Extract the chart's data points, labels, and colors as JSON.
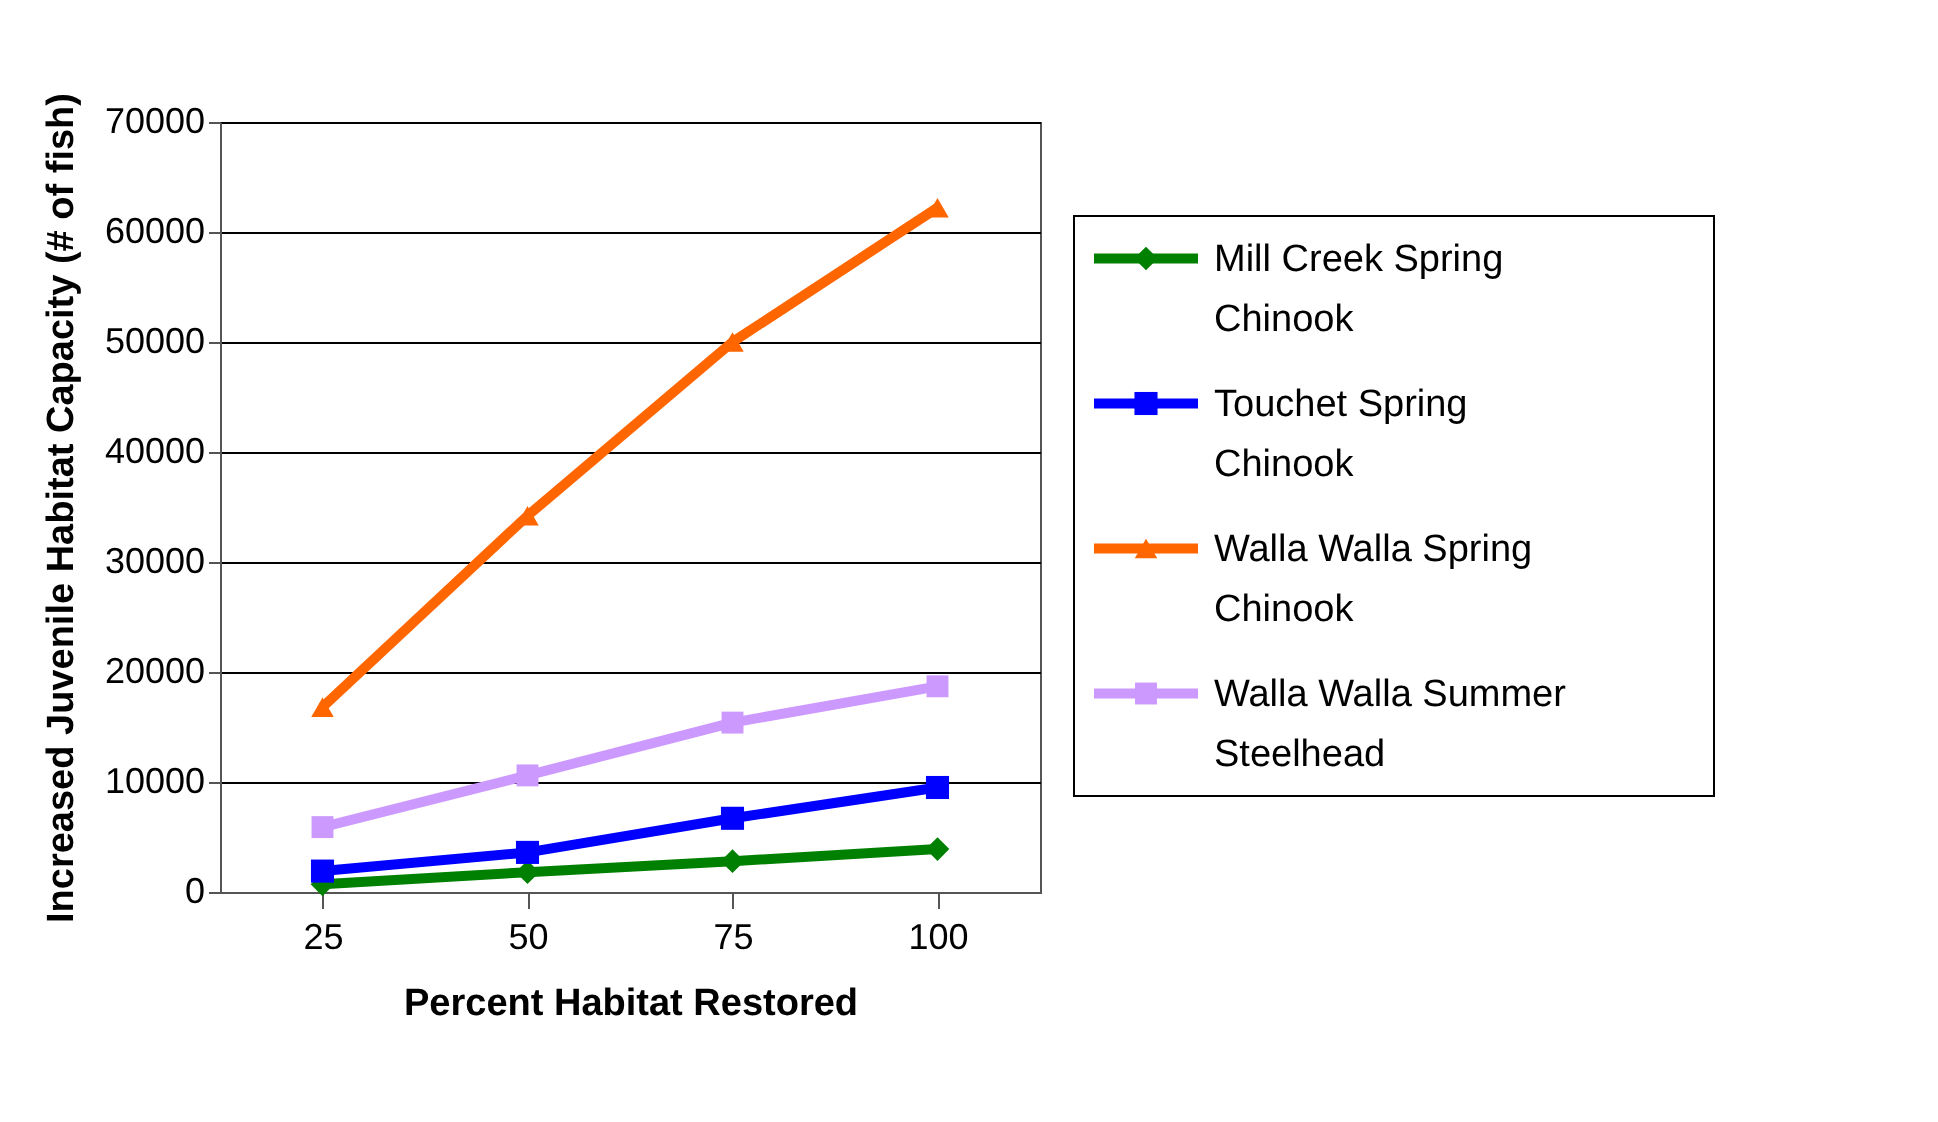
{
  "chart_data": {
    "type": "line",
    "xlabel": "Percent Habitat Restored",
    "ylabel": "Increased Juvenile Habitat Capacity (# of fish)",
    "categories": [
      "25",
      "50",
      "75",
      "100"
    ],
    "series": [
      {
        "name": "Mill Creek Spring Chinook",
        "color": "#008000",
        "marker": "diamond",
        "values": [
          700,
          1800,
          2800,
          3900
        ]
      },
      {
        "name": "Touchet Spring Chinook",
        "color": "#0000ff",
        "marker": "square",
        "values": [
          1900,
          3600,
          6700,
          9500
        ]
      },
      {
        "name": "Walla Walla Spring Chinook",
        "color": "#ff6600",
        "marker": "triangle",
        "values": [
          16800,
          34200,
          50000,
          62200
        ]
      },
      {
        "name": "Walla Walla Summer Steelhead",
        "color": "#cc99ff",
        "marker": "square",
        "values": [
          5900,
          10600,
          15400,
          18700
        ]
      }
    ],
    "ylim": [
      0,
      70000
    ],
    "yticks": [
      0,
      10000,
      20000,
      30000,
      40000,
      50000,
      60000,
      70000
    ],
    "grid": "y",
    "legend": "right",
    "line_style": "solid"
  }
}
